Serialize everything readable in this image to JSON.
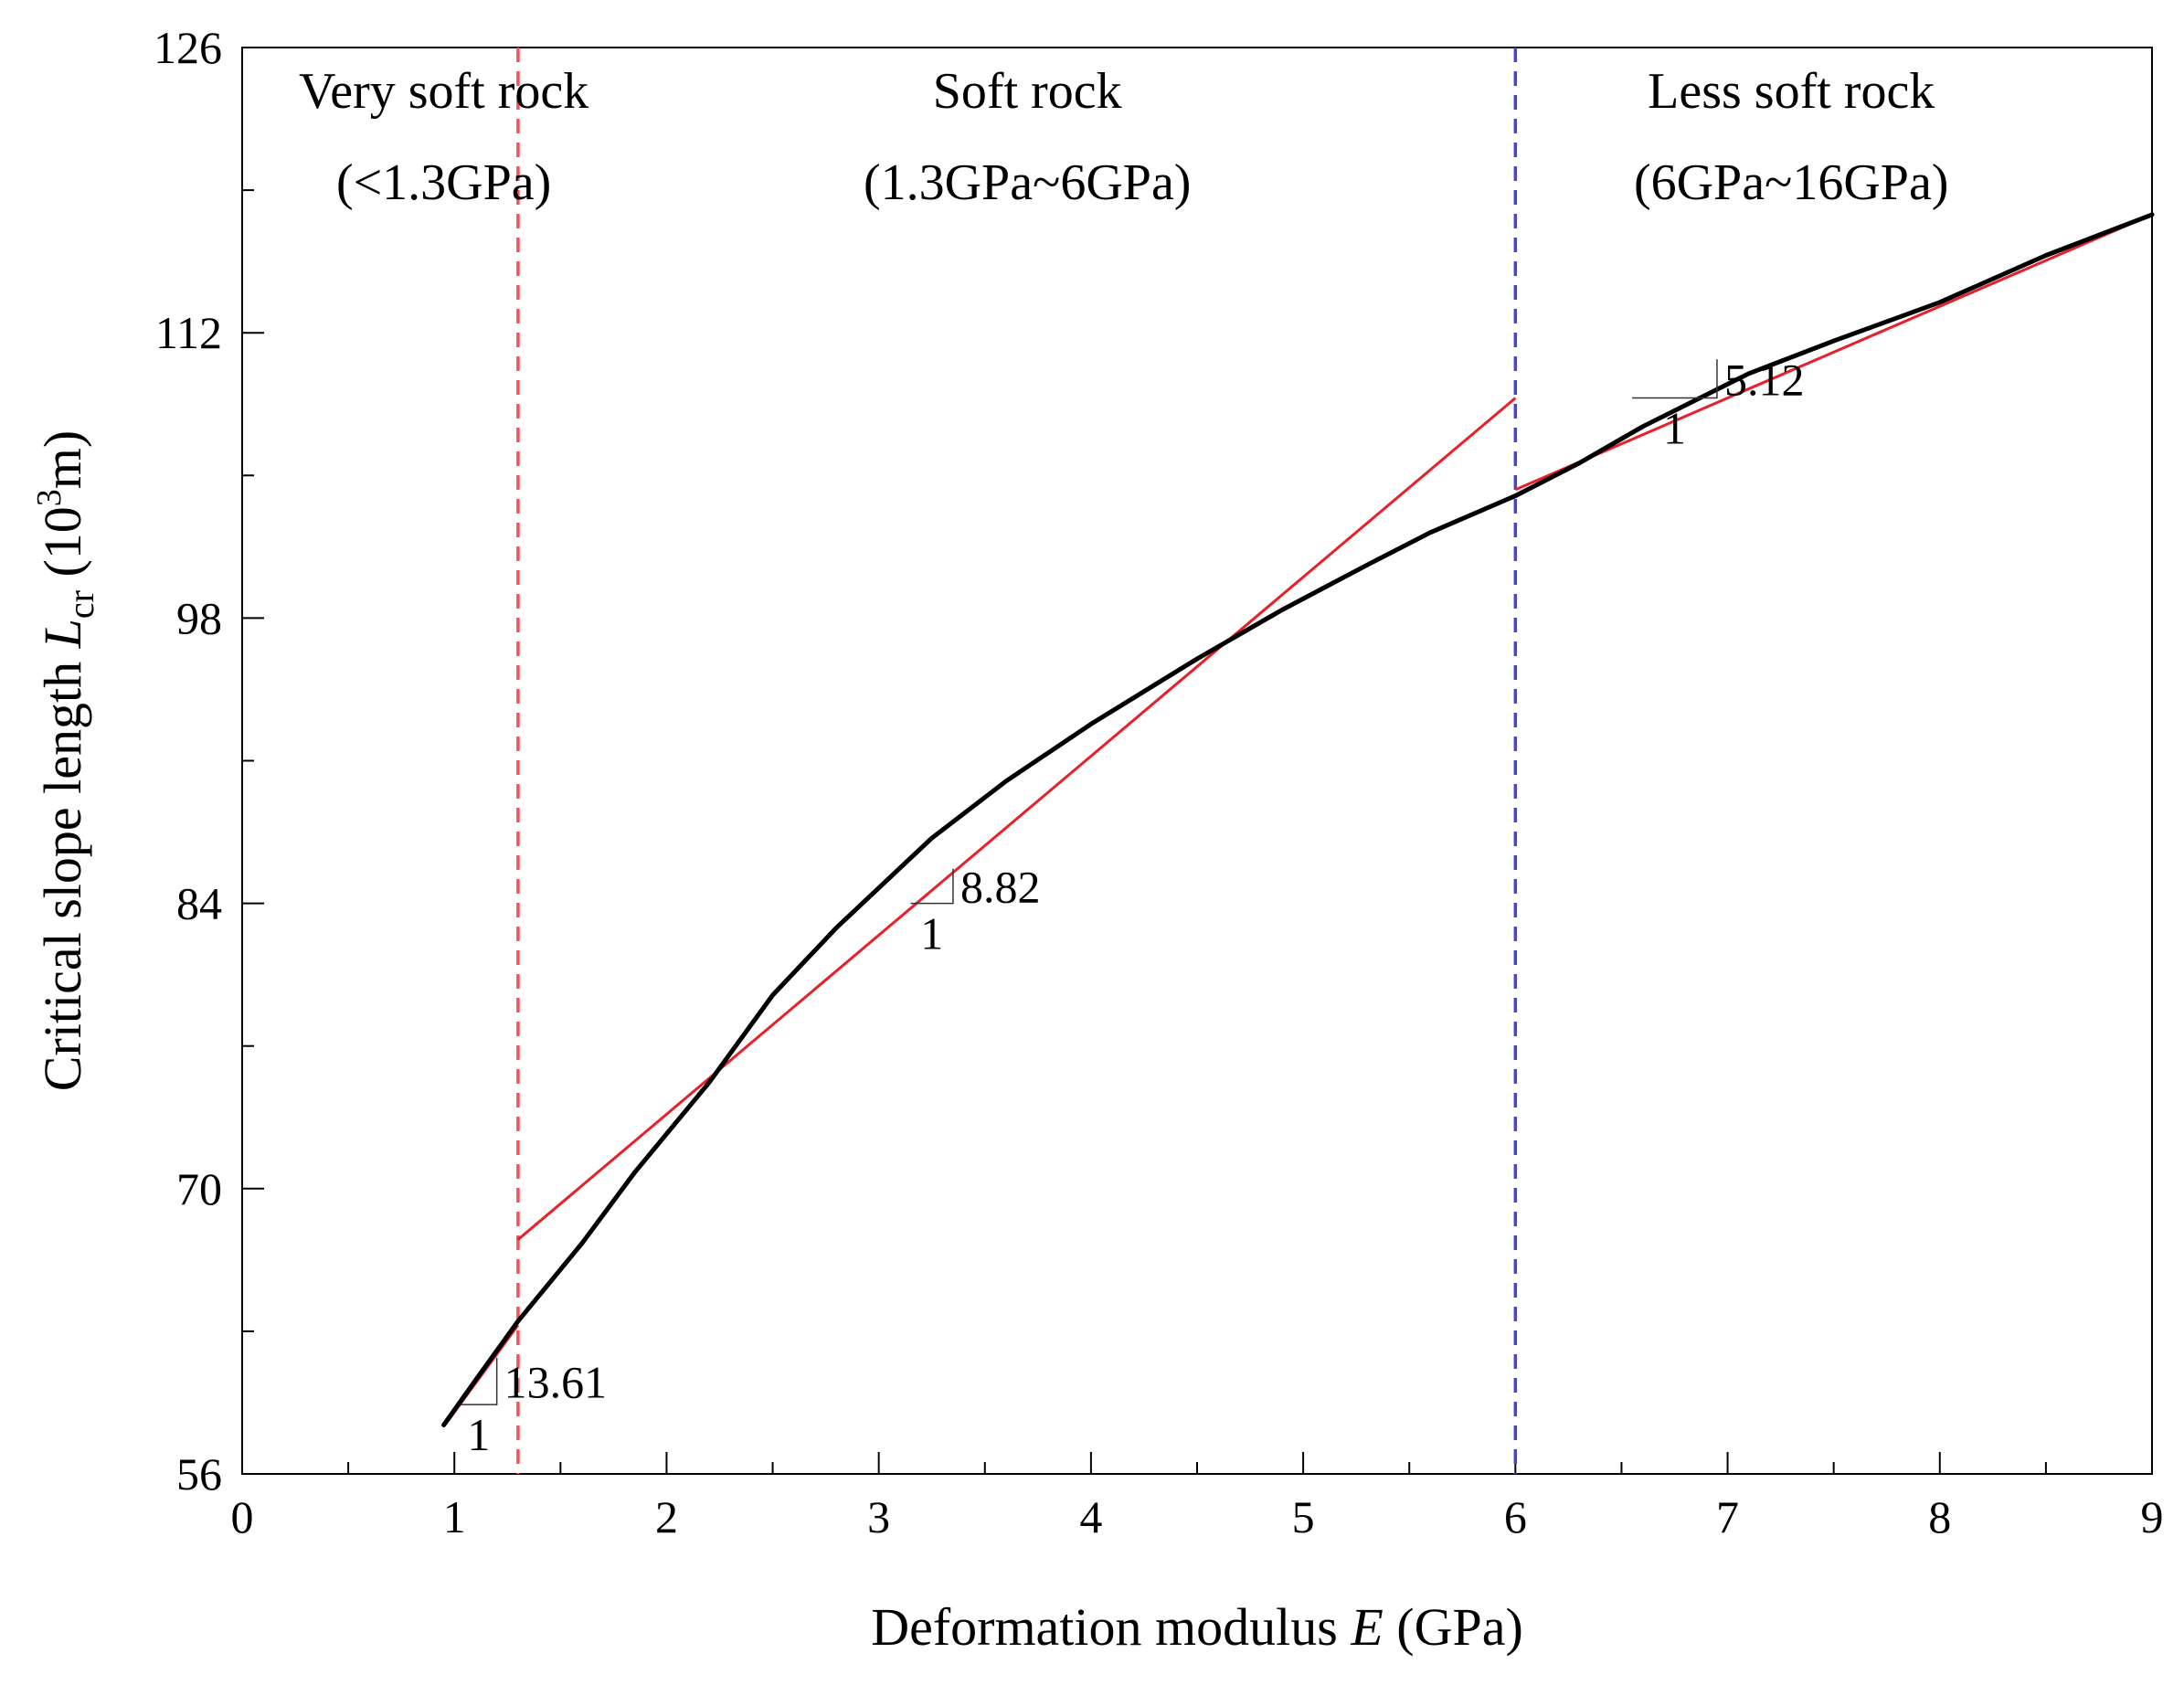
{
  "chart_data": {
    "type": "line",
    "xlabel_prefix": "Deformation modulus ",
    "xlabel_var": "E",
    "xlabel_suffix": " (GPa)",
    "ylabel_prefix": "Critical slope length ",
    "ylabel_var": "L",
    "ylabel_sub": "cr",
    "ylabel_unit_open": " (10",
    "ylabel_unit_sup": "3",
    "ylabel_unit_close": "m)",
    "xlim": [
      0,
      9
    ],
    "ylim": [
      56,
      126
    ],
    "xticks": [
      0,
      1,
      2,
      3,
      4,
      5,
      6,
      7,
      8,
      9
    ],
    "xtick_labels": [
      "0",
      "1",
      "2",
      "3",
      "4",
      "5",
      "6",
      "7",
      "8",
      "9"
    ],
    "yticks": [
      56,
      70,
      84,
      98,
      112,
      126
    ],
    "ytick_labels": [
      "56",
      "70",
      "84",
      "98",
      "112",
      "126"
    ],
    "x_minor_step": 0.5,
    "y_minor_step": 7,
    "series": [
      {
        "name": "Critical slope length",
        "color": "#000000",
        "x": [
          0.95,
          1.1,
          1.3,
          1.6,
          1.85,
          2.2,
          2.5,
          2.8,
          3.25,
          3.6,
          4.0,
          4.5,
          4.9,
          5.3,
          5.6,
          6.0,
          6.3,
          6.6,
          7.1,
          7.5,
          8.0,
          8.5,
          9.0
        ],
        "y": [
          58.4,
          60.6,
          63.5,
          67.3,
          70.8,
          75.2,
          79.5,
          82.8,
          87.2,
          90.0,
          92.8,
          96.0,
          98.4,
          100.6,
          102.2,
          104.0,
          105.6,
          107.4,
          110.0,
          111.6,
          113.5,
          115.8,
          117.8
        ]
      }
    ],
    "fit_lines": [
      {
        "name": "fit-very-soft",
        "color": "#e8202a",
        "x": [
          0.97,
          1.3
        ],
        "y": [
          58.6,
          63.3
        ]
      },
      {
        "name": "fit-soft",
        "color": "#e8202a",
        "x": [
          1.3,
          6.0
        ],
        "y": [
          67.5,
          108.8
        ]
      },
      {
        "name": "fit-less-soft",
        "color": "#e8202a",
        "x": [
          6.0,
          9.0
        ],
        "y": [
          104.3,
          117.8
        ]
      }
    ],
    "boundaries": [
      {
        "name": "boundary-1.3",
        "x": 1.3,
        "color": "#ff4d55"
      },
      {
        "name": "boundary-6",
        "x": 6.0,
        "color": "#4545d0"
      }
    ],
    "regions": [
      {
        "name": "very-soft",
        "line1": "Very soft rock",
        "line2": "(<1.3GPa)",
        "x": 0.95
      },
      {
        "name": "soft",
        "line1": "Soft rock",
        "line2": "(1.3GPa~6GPa)",
        "x": 3.7
      },
      {
        "name": "less-soft",
        "line1": "Less soft rock",
        "line2": "(6GPa~16GPa)",
        "x": 7.3
      }
    ],
    "slope_annotations": [
      {
        "name": "slope-13-61",
        "label": "13.61",
        "unit_label": "1",
        "x1": 1.03,
        "x2": 1.2,
        "y": 59.4,
        "rise": 2.3
      },
      {
        "name": "slope-8-82",
        "label": "8.82",
        "unit_label": "1",
        "x1": 3.15,
        "x2": 3.35,
        "y": 84.0,
        "rise": 1.7
      },
      {
        "name": "slope-5-12",
        "label": "5.12",
        "unit_label": "1",
        "x1": 6.55,
        "x2": 6.95,
        "y": 108.8,
        "rise": 1.9
      }
    ]
  }
}
